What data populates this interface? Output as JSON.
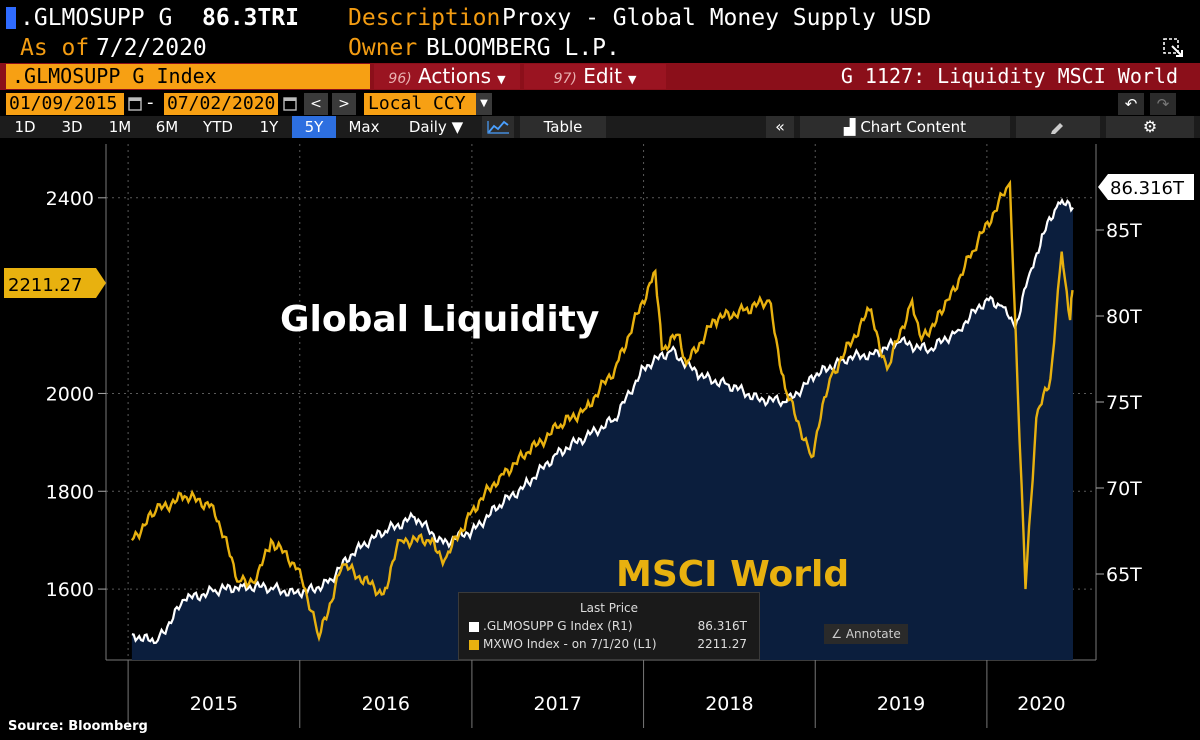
{
  "header": {
    "ticker": ".GLMOSUPP G",
    "last_value": "86.3TRI",
    "description_label": "Description",
    "description_value": "Proxy - Global Money Supply USD",
    "as_of_label": "As of",
    "as_of_value": "7/2/2020",
    "owner_label": "Owner",
    "owner_value": "BLOOMBERG L.P."
  },
  "toolbar": {
    "security": ".GLMOSUPP G Index",
    "actions_num": "96)",
    "actions_label": "Actions",
    "edit_num": "97)",
    "edit_label": "Edit",
    "graph_title": "G 1127: Liquidity MSCI World",
    "start_date": "01/09/2015",
    "end_date": "07/02/2020",
    "date_separator": "-",
    "prev_label": "<",
    "next_label": ">",
    "currency": "Local CCY",
    "ranges": [
      "1D",
      "3D",
      "1M",
      "6M",
      "YTD",
      "1Y",
      "5Y",
      "Max"
    ],
    "active_range": "5Y",
    "period": "Daily",
    "table_label": "Table",
    "collapse_label": "«",
    "chart_content_label": "Chart Content",
    "settings_label": "⚙",
    "undo_label": "↶",
    "redo_label": "↷"
  },
  "legend": {
    "title": "Last Price",
    "row1_name": ".GLMOSUPP G Index  (R1)",
    "row1_value": "86.316T",
    "row2_name": "MXWO Index -  on 7/1/20  (L1)",
    "row2_value": "2211.27"
  },
  "annotate_label": "Annotate",
  "source": "Source:  Bloomberg",
  "colors": {
    "liquidity": "#ffffff",
    "liquidity_fill": "#0b1e3d",
    "msci": "#e8b10f",
    "orange": "#f7a013",
    "red": "#8b0f1a"
  },
  "chart_data": {
    "type": "line",
    "x_labels": [
      "2015",
      "2016",
      "2017",
      "2018",
      "2019",
      "2020"
    ],
    "left_axis": {
      "ticks": [
        1600,
        1800,
        2000,
        2400
      ],
      "range": [
        1455,
        2510
      ]
    },
    "right_axis": {
      "ticks": [
        "65T",
        "70T",
        "75T",
        "80T",
        "85T"
      ],
      "tick_values": [
        65,
        70,
        75,
        80,
        85
      ],
      "range": [
        60,
        90
      ]
    },
    "annotations": [
      {
        "text": "Global Liquidity",
        "color": "#ffffff"
      },
      {
        "text": "MSCI World",
        "color": "#e8b10f"
      }
    ],
    "last_labels": {
      "left": "2211.27",
      "right": "86.316T"
    },
    "series": [
      {
        "name": ".GLMOSUPP G Index",
        "axis": "right",
        "points": [
          [
            "2015-01-09",
            61.5
          ],
          [
            "2015-03-01",
            61.0
          ],
          [
            "2015-05-01",
            63.5
          ],
          [
            "2015-07-01",
            64.0
          ],
          [
            "2015-09-01",
            64.3
          ],
          [
            "2015-11-01",
            64.2
          ],
          [
            "2016-01-01",
            63.8
          ],
          [
            "2016-03-01",
            64.5
          ],
          [
            "2016-05-01",
            66.5
          ],
          [
            "2016-07-01",
            67.5
          ],
          [
            "2016-09-01",
            68.3
          ],
          [
            "2016-11-01",
            66.8
          ],
          [
            "2017-01-01",
            67.5
          ],
          [
            "2017-03-01",
            69.0
          ],
          [
            "2017-05-01",
            70.3
          ],
          [
            "2017-07-01",
            72.0
          ],
          [
            "2017-09-01",
            73.0
          ],
          [
            "2017-11-01",
            74.0
          ],
          [
            "2018-01-01",
            77.0
          ],
          [
            "2018-03-01",
            78.0
          ],
          [
            "2018-05-01",
            76.5
          ],
          [
            "2018-07-01",
            76.0
          ],
          [
            "2018-09-01",
            75.2
          ],
          [
            "2018-11-01",
            75.0
          ],
          [
            "2019-01-01",
            76.5
          ],
          [
            "2019-03-01",
            77.5
          ],
          [
            "2019-05-01",
            77.8
          ],
          [
            "2019-07-01",
            78.5
          ],
          [
            "2019-09-01",
            78.0
          ],
          [
            "2019-11-01",
            79.2
          ],
          [
            "2020-01-01",
            81.0
          ],
          [
            "2020-02-01",
            80.6
          ],
          [
            "2020-03-01",
            79.3
          ],
          [
            "2020-04-01",
            82.5
          ],
          [
            "2020-05-01",
            84.8
          ],
          [
            "2020-06-01",
            86.6
          ],
          [
            "2020-07-02",
            86.3
          ]
        ]
      },
      {
        "name": "MXWO Index",
        "axis": "left",
        "points": [
          [
            "2015-01-09",
            1700
          ],
          [
            "2015-03-01",
            1760
          ],
          [
            "2015-05-01",
            1790
          ],
          [
            "2015-07-01",
            1770
          ],
          [
            "2015-08-25",
            1615
          ],
          [
            "2015-10-01",
            1620
          ],
          [
            "2015-11-01",
            1700
          ],
          [
            "2016-01-01",
            1640
          ],
          [
            "2016-02-11",
            1500
          ],
          [
            "2016-04-01",
            1650
          ],
          [
            "2016-06-27",
            1590
          ],
          [
            "2016-08-01",
            1700
          ],
          [
            "2016-10-01",
            1700
          ],
          [
            "2016-11-04",
            1660
          ],
          [
            "2017-01-01",
            1760
          ],
          [
            "2017-03-01",
            1830
          ],
          [
            "2017-05-01",
            1880
          ],
          [
            "2017-07-01",
            1930
          ],
          [
            "2017-09-01",
            1970
          ],
          [
            "2017-11-01",
            2050
          ],
          [
            "2018-01-26",
            2250
          ],
          [
            "2018-02-09",
            2090
          ],
          [
            "2018-03-15",
            2120
          ],
          [
            "2018-04-02",
            2060
          ],
          [
            "2018-06-01",
            2150
          ],
          [
            "2018-08-01",
            2170
          ],
          [
            "2018-09-25",
            2190
          ],
          [
            "2018-10-29",
            2010
          ],
          [
            "2018-12-24",
            1870
          ],
          [
            "2019-02-01",
            2030
          ],
          [
            "2019-04-26",
            2170
          ],
          [
            "2019-06-03",
            2050
          ],
          [
            "2019-07-26",
            2190
          ],
          [
            "2019-08-15",
            2110
          ],
          [
            "2019-10-01",
            2170
          ],
          [
            "2019-12-01",
            2290
          ],
          [
            "2020-02-19",
            2430
          ],
          [
            "2020-03-23",
            1600
          ],
          [
            "2020-04-15",
            1950
          ],
          [
            "2020-05-15",
            2030
          ],
          [
            "2020-06-08",
            2290
          ],
          [
            "2020-06-26",
            2150
          ],
          [
            "2020-07-01",
            2211.27
          ]
        ]
      }
    ]
  }
}
